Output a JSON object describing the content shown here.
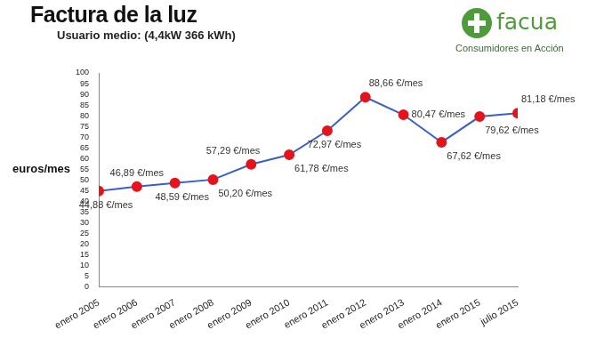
{
  "chart_data": {
    "type": "line",
    "title": "Factura de la luz",
    "subtitle": "Usuario medio: (4,4kW 366 kWh)",
    "y_label": "euros/mes",
    "annotations": [
      "facua",
      "Consumidores en Acción"
    ],
    "categories": [
      "enero 2005",
      "enero 2006",
      "enero 2007",
      "enero 2008",
      "enero 2009",
      "enero 2010",
      "enero 2011",
      "enero 2012",
      "enero 2013",
      "enero 2014",
      "enero 2015",
      "julio 2015"
    ],
    "values": [
      44.88,
      46.89,
      48.59,
      50.2,
      57.29,
      61.78,
      72.97,
      88.66,
      80.47,
      67.62,
      79.62,
      81.18
    ],
    "value_labels": [
      "44,88 €/mes",
      "46,89 €/mes",
      "48,59 €/mes",
      "50,20 €/mes",
      "57,29 €/mes",
      "61,78 €/mes",
      "72,97 €/mes",
      "88,66 €/mes",
      "80,47 €/mes",
      "67,62 €/mes",
      "79,62 €/mes",
      "81,18 €/mes"
    ],
    "color": "#3a5fcd",
    "marker": "circle",
    "ylim": [
      0,
      100
    ],
    "yticks": [
      0,
      5,
      10,
      15,
      20,
      25,
      30,
      35,
      40,
      45,
      50,
      55,
      60,
      65,
      70,
      75,
      80,
      85,
      90,
      95,
      100
    ],
    "grid": false,
    "data_labels": true
  }
}
